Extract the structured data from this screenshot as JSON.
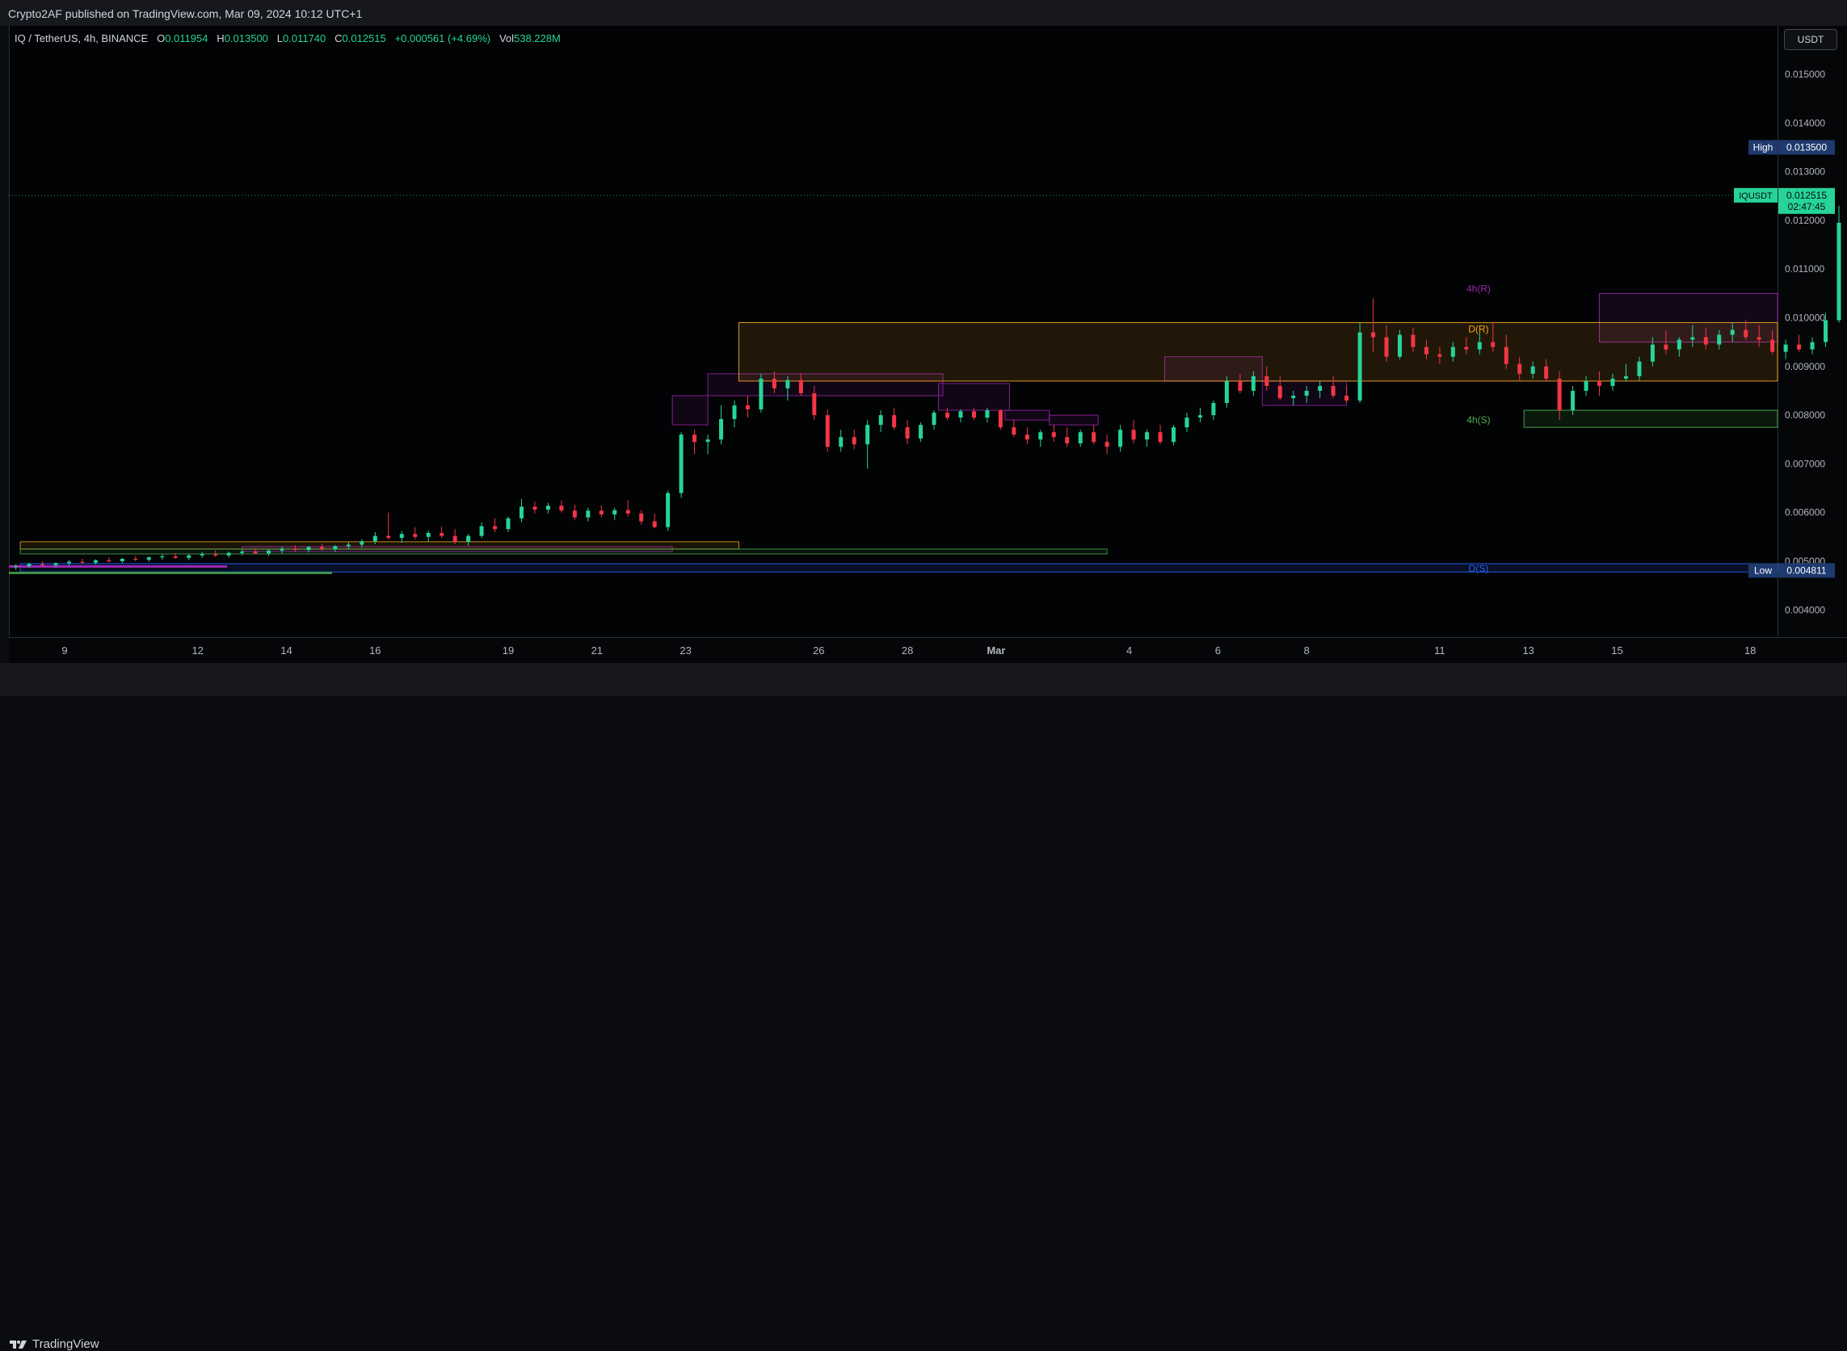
{
  "header": {
    "published": "Crypto2AF published on TradingView.com, Mar 09, 2024 10:12 UTC+1"
  },
  "legend": {
    "symbol": "IQ / TetherUS, 4h, BINANCE",
    "o_label": "O",
    "o": "0.011954",
    "h_label": "H",
    "h": "0.013500",
    "l_label": "L",
    "l": "0.011740",
    "c_label": "C",
    "c": "0.012515",
    "change": "+0.000561 (+4.69%)",
    "vol_label": "Vol",
    "vol": "538.228M"
  },
  "currency_button": "USDT",
  "footer": {
    "brand": "TradingView"
  },
  "colors": {
    "up": "#26d49a",
    "down": "#f23645",
    "bg": "#020304",
    "purple": "#9c27b0",
    "orange": "#f5a623",
    "green": "#4caf50",
    "blue": "#2962ff"
  },
  "chart_data": {
    "type": "candlestick",
    "symbol": "IQUSDT",
    "timeframe": "4h",
    "y_range": [
      0.0035,
      0.016
    ],
    "y_ticks": [
      "0.015000",
      "0.014000",
      "0.013000",
      "0.012000",
      "0.011000",
      "0.010000",
      "0.009000",
      "0.008000",
      "0.007000",
      "0.006000",
      "0.005000",
      "0.004000"
    ],
    "x_ticks": [
      {
        "label": "9",
        "day": 9
      },
      {
        "label": "12",
        "day": 12
      },
      {
        "label": "14",
        "day": 14
      },
      {
        "label": "16",
        "day": 16
      },
      {
        "label": "19",
        "day": 19
      },
      {
        "label": "21",
        "day": 21
      },
      {
        "label": "23",
        "day": 23
      },
      {
        "label": "26",
        "day": 26
      },
      {
        "label": "28",
        "day": 28
      },
      {
        "label": "Mar",
        "day": 30
      },
      {
        "label": "4",
        "day": 33
      },
      {
        "label": "6",
        "day": 35
      },
      {
        "label": "8",
        "day": 37
      },
      {
        "label": "11",
        "day": 40
      },
      {
        "label": "13",
        "day": 42
      },
      {
        "label": "15",
        "day": 44
      },
      {
        "label": "18",
        "day": 47
      }
    ],
    "x_note": "day index: Feb dates as-is, March dates = 29 + day",
    "candles": [
      [
        7.9,
        0.00488,
        0.00494,
        0.00482,
        0.0049
      ],
      [
        8.2,
        0.0049,
        0.00497,
        0.00486,
        0.00494
      ],
      [
        8.5,
        0.00494,
        0.005,
        0.00489,
        0.00492
      ],
      [
        8.8,
        0.00492,
        0.00498,
        0.00487,
        0.00496
      ],
      [
        9.1,
        0.00496,
        0.00502,
        0.00491,
        0.00499
      ],
      [
        9.4,
        0.00499,
        0.00505,
        0.00494,
        0.00497
      ],
      [
        9.7,
        0.00497,
        0.00504,
        0.00493,
        0.00502
      ],
      [
        10.0,
        0.00502,
        0.00508,
        0.00497,
        0.005
      ],
      [
        10.3,
        0.005,
        0.00507,
        0.00496,
        0.00505
      ],
      [
        10.6,
        0.00505,
        0.00511,
        0.005,
        0.00503
      ],
      [
        10.9,
        0.00503,
        0.0051,
        0.00499,
        0.00508
      ],
      [
        11.2,
        0.00508,
        0.00515,
        0.00503,
        0.0051
      ],
      [
        11.5,
        0.0051,
        0.00517,
        0.00505,
        0.00507
      ],
      [
        11.8,
        0.00507,
        0.00514,
        0.00502,
        0.00512
      ],
      [
        12.1,
        0.00512,
        0.00519,
        0.00507,
        0.00515
      ],
      [
        12.4,
        0.00515,
        0.00522,
        0.00509,
        0.00512
      ],
      [
        12.7,
        0.00512,
        0.0052,
        0.00507,
        0.00517
      ],
      [
        13.0,
        0.00517,
        0.00524,
        0.00512,
        0.0052
      ],
      [
        13.3,
        0.0052,
        0.00527,
        0.00514,
        0.00516
      ],
      [
        13.6,
        0.00516,
        0.00525,
        0.00511,
        0.00522
      ],
      [
        13.9,
        0.00522,
        0.0053,
        0.00516,
        0.00526
      ],
      [
        14.2,
        0.00526,
        0.00533,
        0.00519,
        0.00523
      ],
      [
        14.5,
        0.00523,
        0.00531,
        0.00518,
        0.00529
      ],
      [
        14.8,
        0.00529,
        0.00536,
        0.00522,
        0.00525
      ],
      [
        15.1,
        0.00525,
        0.00533,
        0.00519,
        0.00531
      ],
      [
        15.4,
        0.00531,
        0.00539,
        0.00525,
        0.00534
      ],
      [
        15.7,
        0.00534,
        0.00545,
        0.00528,
        0.00541
      ],
      [
        16.0,
        0.00541,
        0.0056,
        0.00535,
        0.00552
      ],
      [
        16.3,
        0.00552,
        0.006,
        0.00545,
        0.00548
      ],
      [
        16.6,
        0.00548,
        0.00562,
        0.00538,
        0.00556
      ],
      [
        16.9,
        0.00556,
        0.0057,
        0.00545,
        0.0055
      ],
      [
        17.2,
        0.0055,
        0.00563,
        0.0054,
        0.00558
      ],
      [
        17.5,
        0.00558,
        0.00571,
        0.00548,
        0.00552
      ],
      [
        17.8,
        0.00552,
        0.00566,
        0.00535,
        0.0054
      ],
      [
        18.1,
        0.0054,
        0.00556,
        0.00532,
        0.00552
      ],
      [
        18.4,
        0.00552,
        0.0058,
        0.00548,
        0.00572
      ],
      [
        18.7,
        0.00572,
        0.00588,
        0.0056,
        0.00566
      ],
      [
        19.0,
        0.00566,
        0.00592,
        0.0056,
        0.00588
      ],
      [
        19.3,
        0.00588,
        0.00628,
        0.0058,
        0.00612
      ],
      [
        19.6,
        0.00612,
        0.00622,
        0.00598,
        0.00606
      ],
      [
        19.9,
        0.00606,
        0.0062,
        0.00598,
        0.00614
      ],
      [
        20.2,
        0.00614,
        0.00625,
        0.006,
        0.00604
      ],
      [
        20.5,
        0.00604,
        0.00616,
        0.00585,
        0.0059
      ],
      [
        20.8,
        0.0059,
        0.0061,
        0.00582,
        0.00604
      ],
      [
        21.1,
        0.00604,
        0.00615,
        0.0059,
        0.00596
      ],
      [
        21.4,
        0.00596,
        0.0061,
        0.00585,
        0.00605
      ],
      [
        21.7,
        0.00605,
        0.00625,
        0.00592,
        0.00598
      ],
      [
        22.0,
        0.00598,
        0.00605,
        0.00575,
        0.00582
      ],
      [
        22.3,
        0.00582,
        0.00598,
        0.00568,
        0.0057
      ],
      [
        22.6,
        0.0057,
        0.00645,
        0.00562,
        0.0064
      ],
      [
        22.9,
        0.0064,
        0.00765,
        0.0063,
        0.0076
      ],
      [
        23.2,
        0.0076,
        0.0077,
        0.0072,
        0.00745
      ],
      [
        23.5,
        0.00745,
        0.0076,
        0.0072,
        0.0075
      ],
      [
        23.8,
        0.0075,
        0.0082,
        0.0074,
        0.00792
      ],
      [
        24.1,
        0.00792,
        0.0083,
        0.00775,
        0.0082
      ],
      [
        24.4,
        0.0082,
        0.0084,
        0.00795,
        0.00812
      ],
      [
        24.7,
        0.00812,
        0.00885,
        0.00805,
        0.00875
      ],
      [
        25.0,
        0.00875,
        0.0089,
        0.00845,
        0.00855
      ],
      [
        25.3,
        0.00855,
        0.0088,
        0.0083,
        0.00872
      ],
      [
        25.6,
        0.00872,
        0.00885,
        0.0084,
        0.00845
      ],
      [
        25.9,
        0.00845,
        0.0086,
        0.0079,
        0.008
      ],
      [
        26.2,
        0.008,
        0.00812,
        0.00725,
        0.00735
      ],
      [
        26.5,
        0.00735,
        0.0077,
        0.00725,
        0.00755
      ],
      [
        26.8,
        0.00755,
        0.0077,
        0.0073,
        0.0074
      ],
      [
        27.1,
        0.0074,
        0.0079,
        0.0069,
        0.0078
      ],
      [
        27.4,
        0.0078,
        0.0081,
        0.00765,
        0.008
      ],
      [
        27.7,
        0.008,
        0.00815,
        0.0077,
        0.00775
      ],
      [
        28.0,
        0.00775,
        0.0079,
        0.0074,
        0.00752
      ],
      [
        28.3,
        0.00752,
        0.00785,
        0.00745,
        0.0078
      ],
      [
        28.6,
        0.0078,
        0.0081,
        0.0077,
        0.00805
      ],
      [
        28.9,
        0.00805,
        0.00815,
        0.0079,
        0.00795
      ],
      [
        29.2,
        0.00795,
        0.00812,
        0.00785,
        0.00808
      ],
      [
        29.5,
        0.00808,
        0.00815,
        0.0079,
        0.00795
      ],
      [
        29.8,
        0.00795,
        0.00815,
        0.00785,
        0.0081
      ],
      [
        30.1,
        0.0081,
        0.00812,
        0.0077,
        0.00775
      ],
      [
        30.4,
        0.00775,
        0.0079,
        0.00755,
        0.0076
      ],
      [
        30.7,
        0.0076,
        0.00775,
        0.0074,
        0.0075
      ],
      [
        31.0,
        0.0075,
        0.0077,
        0.00735,
        0.00765
      ],
      [
        31.3,
        0.00765,
        0.0078,
        0.00745,
        0.00755
      ],
      [
        31.6,
        0.00755,
        0.00775,
        0.00735,
        0.00742
      ],
      [
        31.9,
        0.00742,
        0.0077,
        0.00735,
        0.00765
      ],
      [
        32.2,
        0.00765,
        0.0078,
        0.0074,
        0.00745
      ],
      [
        32.5,
        0.00745,
        0.0076,
        0.0072,
        0.00735
      ],
      [
        32.8,
        0.00735,
        0.0078,
        0.00725,
        0.0077
      ],
      [
        33.1,
        0.0077,
        0.0079,
        0.00742,
        0.0075
      ],
      [
        33.4,
        0.0075,
        0.0077,
        0.00735,
        0.00765
      ],
      [
        33.7,
        0.00765,
        0.0078,
        0.0074,
        0.00745
      ],
      [
        34.0,
        0.00745,
        0.0078,
        0.00738,
        0.00775
      ],
      [
        34.3,
        0.00775,
        0.00805,
        0.00765,
        0.00795
      ],
      [
        34.6,
        0.00795,
        0.00815,
        0.00785,
        0.008
      ],
      [
        34.9,
        0.008,
        0.0083,
        0.0079,
        0.00825
      ],
      [
        35.2,
        0.00825,
        0.0088,
        0.00815,
        0.0087
      ],
      [
        35.5,
        0.0087,
        0.00885,
        0.00845,
        0.0085
      ],
      [
        35.8,
        0.0085,
        0.0089,
        0.0084,
        0.0088
      ],
      [
        36.1,
        0.0088,
        0.009,
        0.0085,
        0.0086
      ],
      [
        36.4,
        0.0086,
        0.0088,
        0.0083,
        0.00835
      ],
      [
        36.7,
        0.00835,
        0.0085,
        0.0082,
        0.0084
      ],
      [
        37.0,
        0.0084,
        0.0086,
        0.00825,
        0.0085
      ],
      [
        37.3,
        0.0085,
        0.0087,
        0.00835,
        0.0086
      ],
      [
        37.6,
        0.0086,
        0.0088,
        0.00835,
        0.0084
      ],
      [
        37.9,
        0.0084,
        0.0086,
        0.00825,
        0.0083
      ],
      [
        38.2,
        0.0083,
        0.0099,
        0.00825,
        0.0097
      ],
      [
        38.5,
        0.0097,
        0.0104,
        0.0093,
        0.0096
      ],
      [
        38.8,
        0.0096,
        0.00985,
        0.0091,
        0.0092
      ],
      [
        39.1,
        0.0092,
        0.00975,
        0.00915,
        0.00965
      ],
      [
        39.4,
        0.00965,
        0.0098,
        0.0093,
        0.0094
      ],
      [
        39.7,
        0.0094,
        0.00955,
        0.00915,
        0.00925
      ],
      [
        40.0,
        0.00925,
        0.0094,
        0.00905,
        0.0092
      ],
      [
        40.3,
        0.0092,
        0.0095,
        0.0091,
        0.0094
      ],
      [
        40.6,
        0.0094,
        0.0096,
        0.00925,
        0.00935
      ],
      [
        40.9,
        0.00935,
        0.0097,
        0.00925,
        0.0095
      ],
      [
        41.2,
        0.0095,
        0.0099,
        0.0093,
        0.0094
      ],
      [
        41.5,
        0.0094,
        0.00965,
        0.00895,
        0.00905
      ],
      [
        41.8,
        0.00905,
        0.0092,
        0.0087,
        0.00885
      ],
      [
        42.1,
        0.00885,
        0.0091,
        0.00875,
        0.009
      ],
      [
        42.4,
        0.009,
        0.00915,
        0.0087,
        0.00875
      ],
      [
        42.7,
        0.00875,
        0.0089,
        0.0079,
        0.0081
      ],
      [
        43.0,
        0.0081,
        0.0086,
        0.008,
        0.0085
      ],
      [
        43.3,
        0.0085,
        0.0088,
        0.0084,
        0.0087
      ],
      [
        43.6,
        0.0087,
        0.0089,
        0.0084,
        0.0086
      ],
      [
        43.9,
        0.0086,
        0.00885,
        0.0085,
        0.00875
      ],
      [
        44.2,
        0.00875,
        0.00905,
        0.0087,
        0.0088
      ],
      [
        44.5,
        0.0088,
        0.0092,
        0.0087,
        0.0091
      ],
      [
        44.8,
        0.0091,
        0.0096,
        0.009,
        0.00945
      ],
      [
        45.1,
        0.00945,
        0.00975,
        0.00925,
        0.00935
      ],
      [
        45.4,
        0.00935,
        0.0096,
        0.0092,
        0.00955
      ],
      [
        45.7,
        0.00955,
        0.00985,
        0.0094,
        0.0096
      ],
      [
        46.0,
        0.0096,
        0.0098,
        0.00935,
        0.00945
      ],
      [
        46.3,
        0.00945,
        0.00975,
        0.00935,
        0.00965
      ],
      [
        46.6,
        0.00965,
        0.0099,
        0.0095,
        0.00975
      ],
      [
        46.9,
        0.00975,
        0.00995,
        0.00955,
        0.0096
      ],
      [
        47.2,
        0.0096,
        0.00985,
        0.0094,
        0.00955
      ],
      [
        47.5,
        0.00955,
        0.00975,
        0.00925,
        0.0093
      ],
      [
        47.8,
        0.0093,
        0.00955,
        0.00915,
        0.00945
      ],
      [
        48.1,
        0.00945,
        0.00965,
        0.0093,
        0.00935
      ],
      [
        48.4,
        0.00935,
        0.0096,
        0.00925,
        0.0095
      ],
      [
        48.7,
        0.0095,
        0.0101,
        0.0094,
        0.00995
      ],
      [
        49.0,
        0.00995,
        0.0123,
        0.0099,
        0.01195
      ],
      [
        49.3,
        0.01195,
        0.0135,
        0.01174,
        0.01251
      ]
    ],
    "zones": [
      {
        "label": "4h(R)",
        "low": 0.0095,
        "high": 0.0105,
        "day_start": 43.6,
        "color": "purple"
      },
      {
        "label": "D(R)",
        "low": 0.0087,
        "high": 0.0099,
        "day_start": 24.2,
        "color": "orange"
      },
      {
        "label": "4h(S)",
        "low": 0.00775,
        "high": 0.0081,
        "day_start": 41.9,
        "color": "green"
      },
      {
        "label": "D(S)",
        "low": 0.00478,
        "high": 0.00495,
        "day_start": 8.0,
        "color": "blue"
      }
    ],
    "old_zones": [
      {
        "low": 0.0084,
        "high": 0.00885,
        "day_start": 23.5,
        "day_end": 28.8,
        "color": "purple"
      },
      {
        "low": 0.0081,
        "high": 0.00865,
        "day_start": 28.7,
        "day_end": 30.3,
        "color": "purple"
      },
      {
        "low": 0.0079,
        "high": 0.0081,
        "day_start": 30.2,
        "day_end": 31.2,
        "color": "purple"
      },
      {
        "low": 0.0078,
        "high": 0.008,
        "day_start": 31.2,
        "day_end": 32.3,
        "color": "purple"
      },
      {
        "low": 0.0078,
        "high": 0.0084,
        "day_start": 22.7,
        "day_end": 23.5,
        "color": "purple"
      },
      {
        "low": 0.0087,
        "high": 0.0092,
        "day_start": 33.8,
        "day_end": 36.0,
        "color": "purple"
      },
      {
        "low": 0.0082,
        "high": 0.0087,
        "day_start": 36.0,
        "day_end": 37.9,
        "color": "purple"
      },
      {
        "low": 0.0052,
        "high": 0.0053,
        "day_start": 13.0,
        "day_end": 22.7,
        "color": "purple"
      },
      {
        "low": 0.00525,
        "high": 0.0054,
        "day_start": 8.0,
        "day_end": 24.2,
        "color": "orange"
      },
      {
        "low": 0.00515,
        "high": 0.00525,
        "day_start": 8.0,
        "day_end": 32.5,
        "color": "green"
      }
    ],
    "price_labels": {
      "high_label": "High",
      "high": "0.013500",
      "low_label": "Low",
      "low": "0.004811",
      "last_symbol": "IQUSDT",
      "last": "0.012515",
      "countdown": "02:47:45"
    }
  }
}
